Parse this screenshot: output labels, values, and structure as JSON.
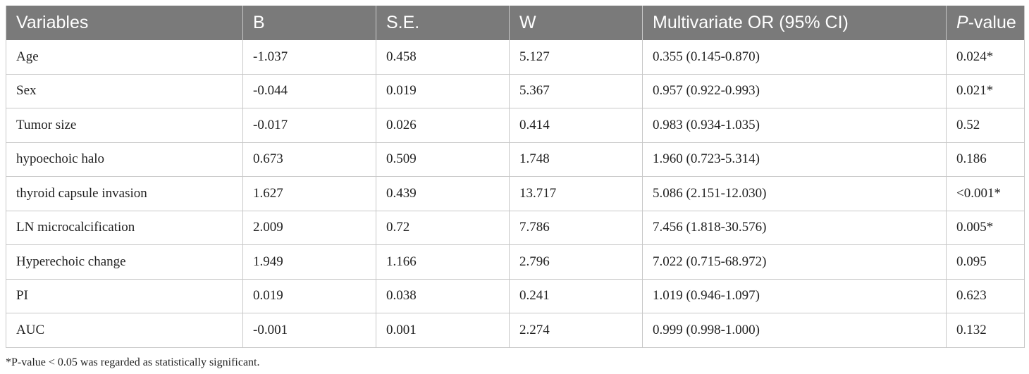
{
  "table": {
    "headers": {
      "variables": "Variables",
      "b": "B",
      "se": "S.E.",
      "w": "W",
      "or": "Multivariate OR (95% CI)",
      "p_italic": "P",
      "p_rest": "-value"
    },
    "rows": [
      {
        "variable": "Age",
        "b": "-1.037",
        "se": "0.458",
        "w": "5.127",
        "or": "0.355 (0.145-0.870)",
        "p": "0.024*"
      },
      {
        "variable": "Sex",
        "b": "-0.044",
        "se": "0.019",
        "w": "5.367",
        "or": "0.957 (0.922-0.993)",
        "p": "0.021*"
      },
      {
        "variable": "Tumor size",
        "b": "-0.017",
        "se": "0.026",
        "w": "0.414",
        "or": "0.983 (0.934-1.035)",
        "p": "0.52"
      },
      {
        "variable": "hypoechoic halo",
        "b": "0.673",
        "se": "0.509",
        "w": "1.748",
        "or": "1.960 (0.723-5.314)",
        "p": "0.186"
      },
      {
        "variable": "thyroid capsule invasion",
        "b": "1.627",
        "se": "0.439",
        "w": "13.717",
        "or": "5.086 (2.151-12.030)",
        "p": "<0.001*"
      },
      {
        "variable": "LN microcalcification",
        "b": "2.009",
        "se": "0.72",
        "w": "7.786",
        "or": "7.456 (1.818-30.576)",
        "p": "0.005*"
      },
      {
        "variable": "Hyperechoic change",
        "b": "1.949",
        "se": "1.166",
        "w": "2.796",
        "or": "7.022 (0.715-68.972)",
        "p": "0.095"
      },
      {
        "variable": "PI",
        "b": "0.019",
        "se": "0.038",
        "w": "0.241",
        "or": "1.019 (0.946-1.097)",
        "p": "0.623"
      },
      {
        "variable": "AUC",
        "b": "-0.001",
        "se": "0.001",
        "w": "2.274",
        "or": "0.999 (0.998-1.000)",
        "p": "0.132"
      }
    ]
  },
  "footnote": "*P-value < 0.05 was regarded as statistically significant."
}
